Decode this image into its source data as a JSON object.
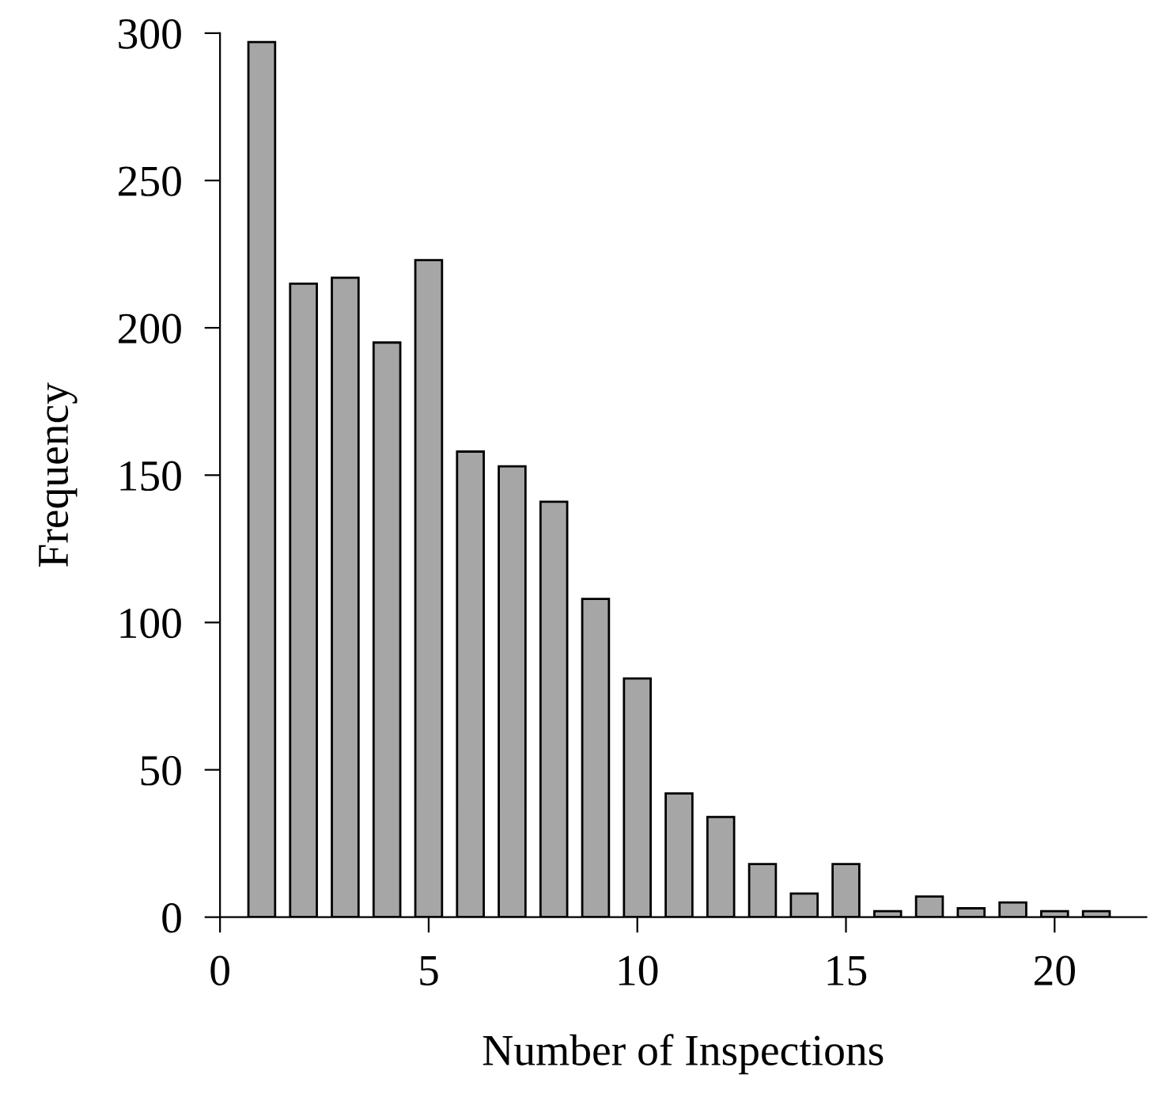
{
  "chart_data": {
    "type": "bar",
    "xlabel": "Number of Inspections",
    "ylabel": "Frequency",
    "x": [
      1,
      2,
      3,
      4,
      5,
      6,
      7,
      8,
      9,
      10,
      11,
      12,
      13,
      14,
      15,
      16,
      17,
      18,
      19,
      20,
      21
    ],
    "values": [
      297,
      215,
      217,
      195,
      223,
      158,
      153,
      141,
      108,
      81,
      42,
      34,
      18,
      8,
      18,
      2,
      7,
      3,
      5,
      2,
      2
    ],
    "color": "#a6a6a6",
    "xlim": [
      0,
      22.2
    ],
    "xticks": [
      0,
      5,
      10,
      15,
      20
    ],
    "ylim": [
      0,
      300
    ],
    "yticks": [
      0,
      50,
      100,
      150,
      200,
      250,
      300
    ],
    "grid": false,
    "legend": false
  }
}
